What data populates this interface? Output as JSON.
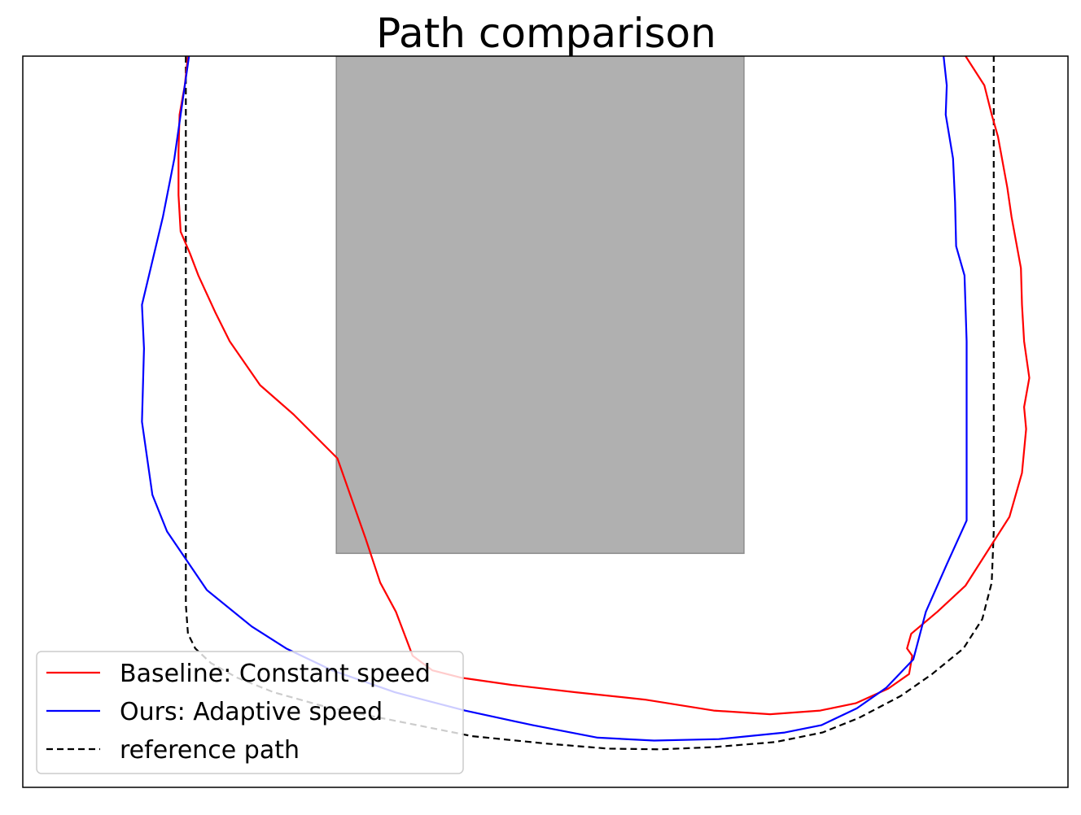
{
  "chart_data": {
    "type": "line",
    "title": "Path comparison",
    "xlabel": "",
    "ylabel": "",
    "grid": false,
    "legend_placement": "lower-left",
    "axis_ticks_visible": false,
    "obstacle": {
      "shape": "rectangle",
      "x_range": [
        0.3,
        0.69
      ],
      "y_range": [
        0.32,
        1.0
      ],
      "color": "#b0b0b0"
    },
    "series": [
      {
        "name": "Baseline: Constant speed",
        "color": "#ff0000",
        "style": "solid",
        "points": [
          [
            0.158,
            1.0
          ],
          [
            0.155,
            0.96
          ],
          [
            0.15,
            0.92
          ],
          [
            0.149,
            0.87
          ],
          [
            0.149,
            0.81
          ],
          [
            0.151,
            0.76
          ],
          [
            0.16,
            0.73
          ],
          [
            0.168,
            0.7
          ],
          [
            0.184,
            0.65
          ],
          [
            0.198,
            0.61
          ],
          [
            0.227,
            0.55
          ],
          [
            0.259,
            0.51
          ],
          [
            0.301,
            0.45
          ],
          [
            0.328,
            0.34
          ],
          [
            0.342,
            0.28
          ],
          [
            0.357,
            0.24
          ],
          [
            0.373,
            0.18
          ],
          [
            0.392,
            0.16
          ],
          [
            0.419,
            0.15
          ],
          [
            0.468,
            0.14
          ],
          [
            0.529,
            0.13
          ],
          [
            0.595,
            0.12
          ],
          [
            0.661,
            0.105
          ],
          [
            0.715,
            0.1
          ],
          [
            0.763,
            0.105
          ],
          [
            0.797,
            0.115
          ],
          [
            0.828,
            0.135
          ],
          [
            0.848,
            0.155
          ],
          [
            0.851,
            0.18
          ],
          [
            0.846,
            0.19
          ],
          [
            0.85,
            0.21
          ],
          [
            0.875,
            0.24
          ],
          [
            0.902,
            0.276
          ],
          [
            0.944,
            0.37
          ],
          [
            0.956,
            0.43
          ],
          [
            0.96,
            0.49
          ],
          [
            0.958,
            0.52
          ],
          [
            0.963,
            0.56
          ],
          [
            0.958,
            0.61
          ],
          [
            0.956,
            0.66
          ],
          [
            0.955,
            0.71
          ],
          [
            0.946,
            0.78
          ],
          [
            0.942,
            0.82
          ],
          [
            0.933,
            0.89
          ],
          [
            0.927,
            0.92
          ],
          [
            0.92,
            0.96
          ],
          [
            0.902,
            1.0
          ]
        ]
      },
      {
        "name": "Ours: Adaptive speed",
        "color": "#0000ff",
        "style": "solid",
        "points": [
          [
            0.159,
            1.0
          ],
          [
            0.153,
            0.94
          ],
          [
            0.145,
            0.86
          ],
          [
            0.134,
            0.78
          ],
          [
            0.114,
            0.66
          ],
          [
            0.116,
            0.6
          ],
          [
            0.114,
            0.5
          ],
          [
            0.124,
            0.4
          ],
          [
            0.138,
            0.35
          ],
          [
            0.176,
            0.27
          ],
          [
            0.219,
            0.22
          ],
          [
            0.252,
            0.19
          ],
          [
            0.296,
            0.16
          ],
          [
            0.356,
            0.13
          ],
          [
            0.423,
            0.105
          ],
          [
            0.488,
            0.085
          ],
          [
            0.55,
            0.068
          ],
          [
            0.604,
            0.064
          ],
          [
            0.666,
            0.066
          ],
          [
            0.729,
            0.075
          ],
          [
            0.764,
            0.085
          ],
          [
            0.798,
            0.108
          ],
          [
            0.826,
            0.136
          ],
          [
            0.852,
            0.175
          ],
          [
            0.864,
            0.24
          ],
          [
            0.884,
            0.305
          ],
          [
            0.903,
            0.365
          ],
          [
            0.903,
            0.5
          ],
          [
            0.903,
            0.61
          ],
          [
            0.901,
            0.7
          ],
          [
            0.893,
            0.74
          ],
          [
            0.892,
            0.8
          ],
          [
            0.89,
            0.86
          ],
          [
            0.883,
            0.92
          ],
          [
            0.884,
            0.96
          ],
          [
            0.881,
            1.0
          ]
        ]
      },
      {
        "name": "reference path",
        "color": "#000000",
        "style": "dashed",
        "points": [
          [
            0.156,
            1.0
          ],
          [
            0.156,
            0.5
          ],
          [
            0.156,
            0.25
          ],
          [
            0.158,
            0.21
          ],
          [
            0.165,
            0.19
          ],
          [
            0.18,
            0.17
          ],
          [
            0.205,
            0.15
          ],
          [
            0.24,
            0.13
          ],
          [
            0.29,
            0.11
          ],
          [
            0.36,
            0.09
          ],
          [
            0.43,
            0.07
          ],
          [
            0.5,
            0.06
          ],
          [
            0.56,
            0.053
          ],
          [
            0.61,
            0.052
          ],
          [
            0.66,
            0.055
          ],
          [
            0.72,
            0.062
          ],
          [
            0.765,
            0.075
          ],
          [
            0.8,
            0.095
          ],
          [
            0.84,
            0.125
          ],
          [
            0.87,
            0.155
          ],
          [
            0.9,
            0.19
          ],
          [
            0.918,
            0.23
          ],
          [
            0.927,
            0.28
          ],
          [
            0.929,
            0.35
          ],
          [
            0.929,
            0.5
          ],
          [
            0.929,
            1.0
          ]
        ]
      }
    ]
  }
}
